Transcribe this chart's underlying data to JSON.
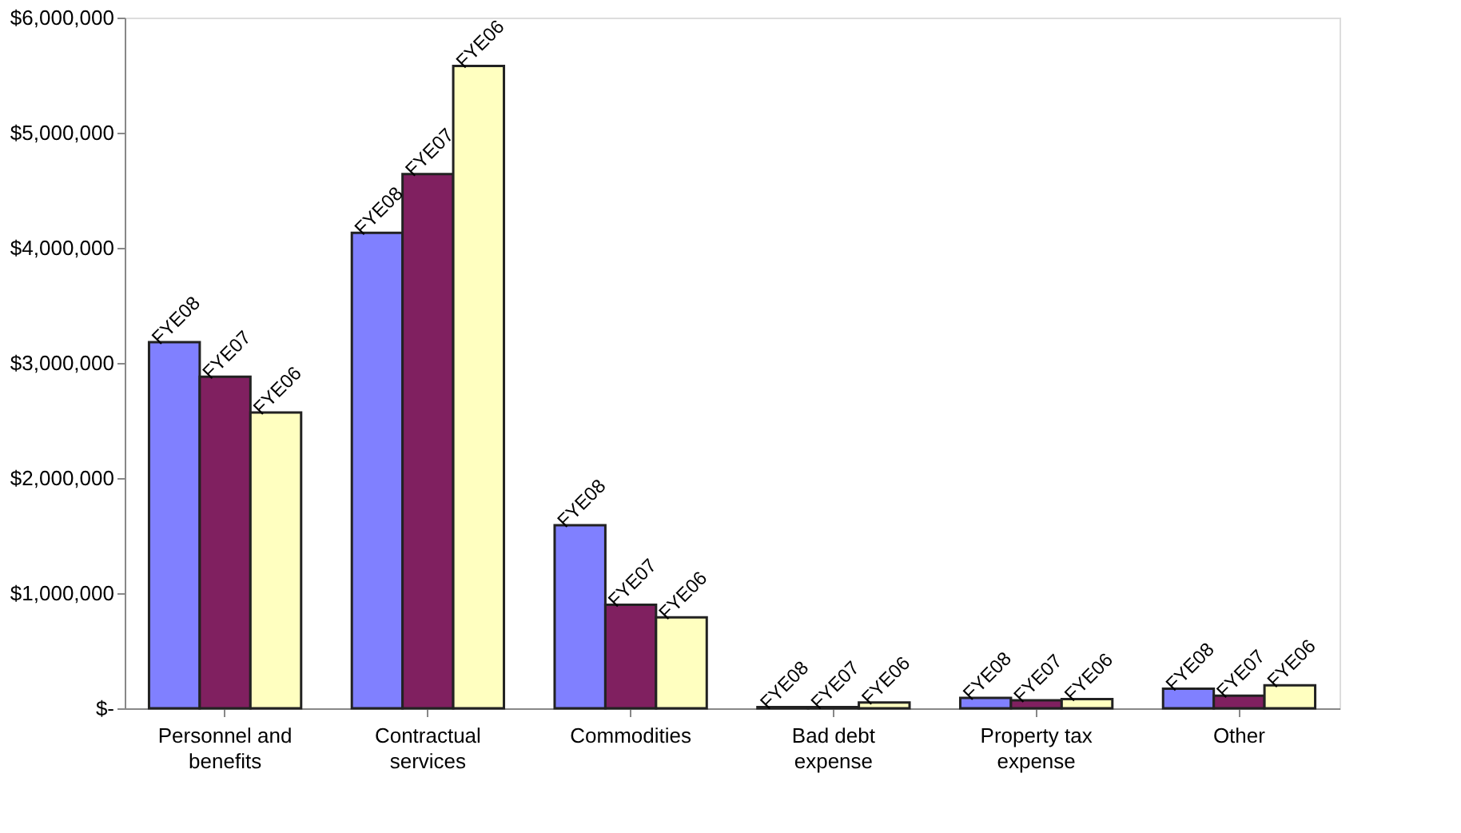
{
  "chart_data": {
    "type": "bar",
    "categories": [
      "Personnel and benefits",
      "Contractual services",
      "Commodities",
      "Bad debt expense",
      "Property tax expense",
      "Other"
    ],
    "series": [
      {
        "name": "FYE08",
        "color": "#8080ff",
        "values": [
          3180000,
          4130000,
          1590000,
          10000,
          90000,
          170000
        ]
      },
      {
        "name": "FYE07",
        "color": "#802060",
        "values": [
          2880000,
          4640000,
          900000,
          10000,
          70000,
          110000
        ]
      },
      {
        "name": "FYE06",
        "color": "#ffffc0",
        "values": [
          2570000,
          5580000,
          790000,
          50000,
          80000,
          200000
        ]
      }
    ],
    "ylim": [
      0,
      6000000
    ],
    "yticks": [
      {
        "value": 0,
        "label": "$-"
      },
      {
        "value": 1000000,
        "label": "$1,000,000"
      },
      {
        "value": 2000000,
        "label": "$2,000,000"
      },
      {
        "value": 3000000,
        "label": "$3,000,000"
      },
      {
        "value": 4000000,
        "label": "$4,000,000"
      },
      {
        "value": 5000000,
        "label": "$5,000,000"
      },
      {
        "value": 6000000,
        "label": "$6,000,000"
      }
    ],
    "grid": false,
    "legend": false
  }
}
